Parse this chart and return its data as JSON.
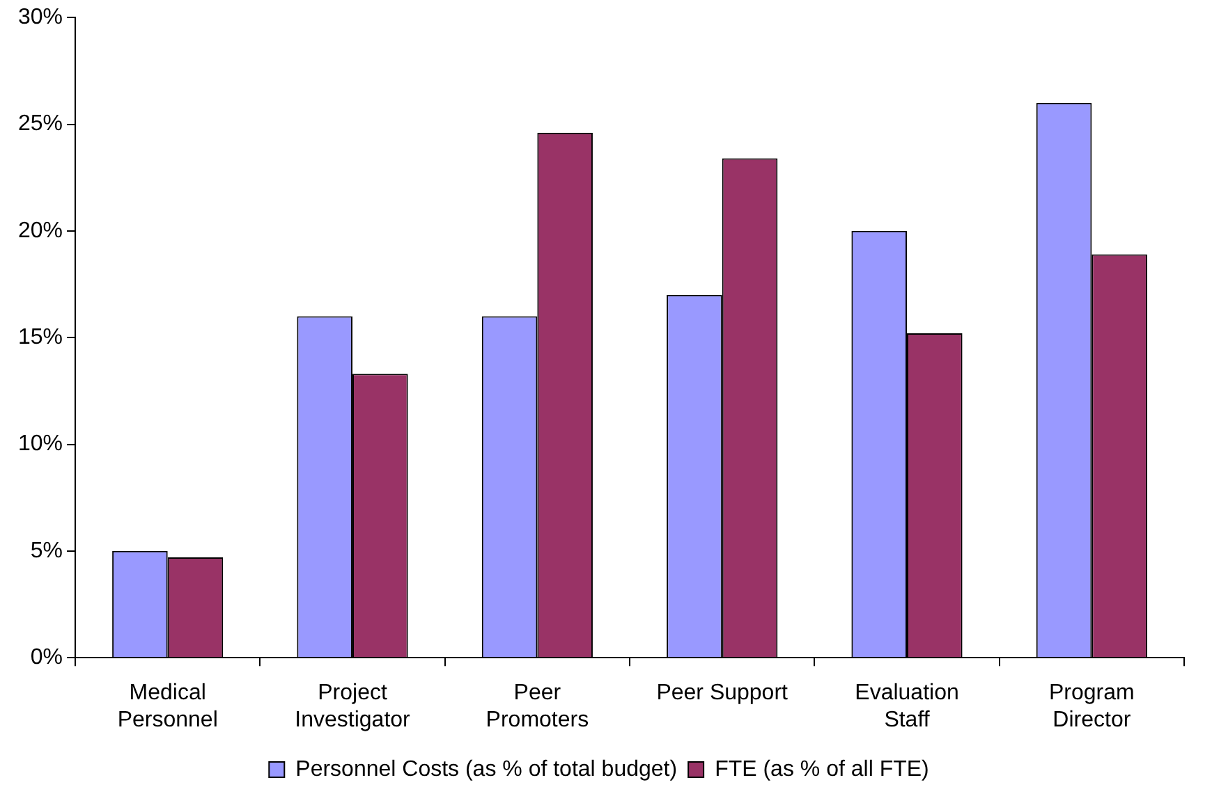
{
  "chart_data": {
    "type": "bar",
    "categories": [
      "Medical Personnel",
      "Project Investigator",
      "Peer Promoters",
      "Peer Support",
      "Evaluation Staff",
      "Program Director"
    ],
    "series": [
      {
        "name": "Personnel Costs (as % of total budget)",
        "color": "#9999ff",
        "values": [
          5.0,
          16.0,
          16.0,
          17.0,
          20.0,
          26.0
        ]
      },
      {
        "name": "FTE (as % of all FTE)",
        "color": "#993366",
        "values": [
          4.7,
          13.3,
          24.6,
          23.4,
          15.2,
          18.9
        ]
      }
    ],
    "ylim": [
      0,
      30
    ],
    "yticks": [
      {
        "value": 0,
        "label": "0%"
      },
      {
        "value": 5,
        "label": "5%"
      },
      {
        "value": 10,
        "label": "10%"
      },
      {
        "value": 15,
        "label": "15%"
      },
      {
        "value": 20,
        "label": "20%"
      },
      {
        "value": 25,
        "label": "25%"
      },
      {
        "value": 30,
        "label": "30%"
      }
    ],
    "grid": false,
    "legend": "bottom"
  }
}
